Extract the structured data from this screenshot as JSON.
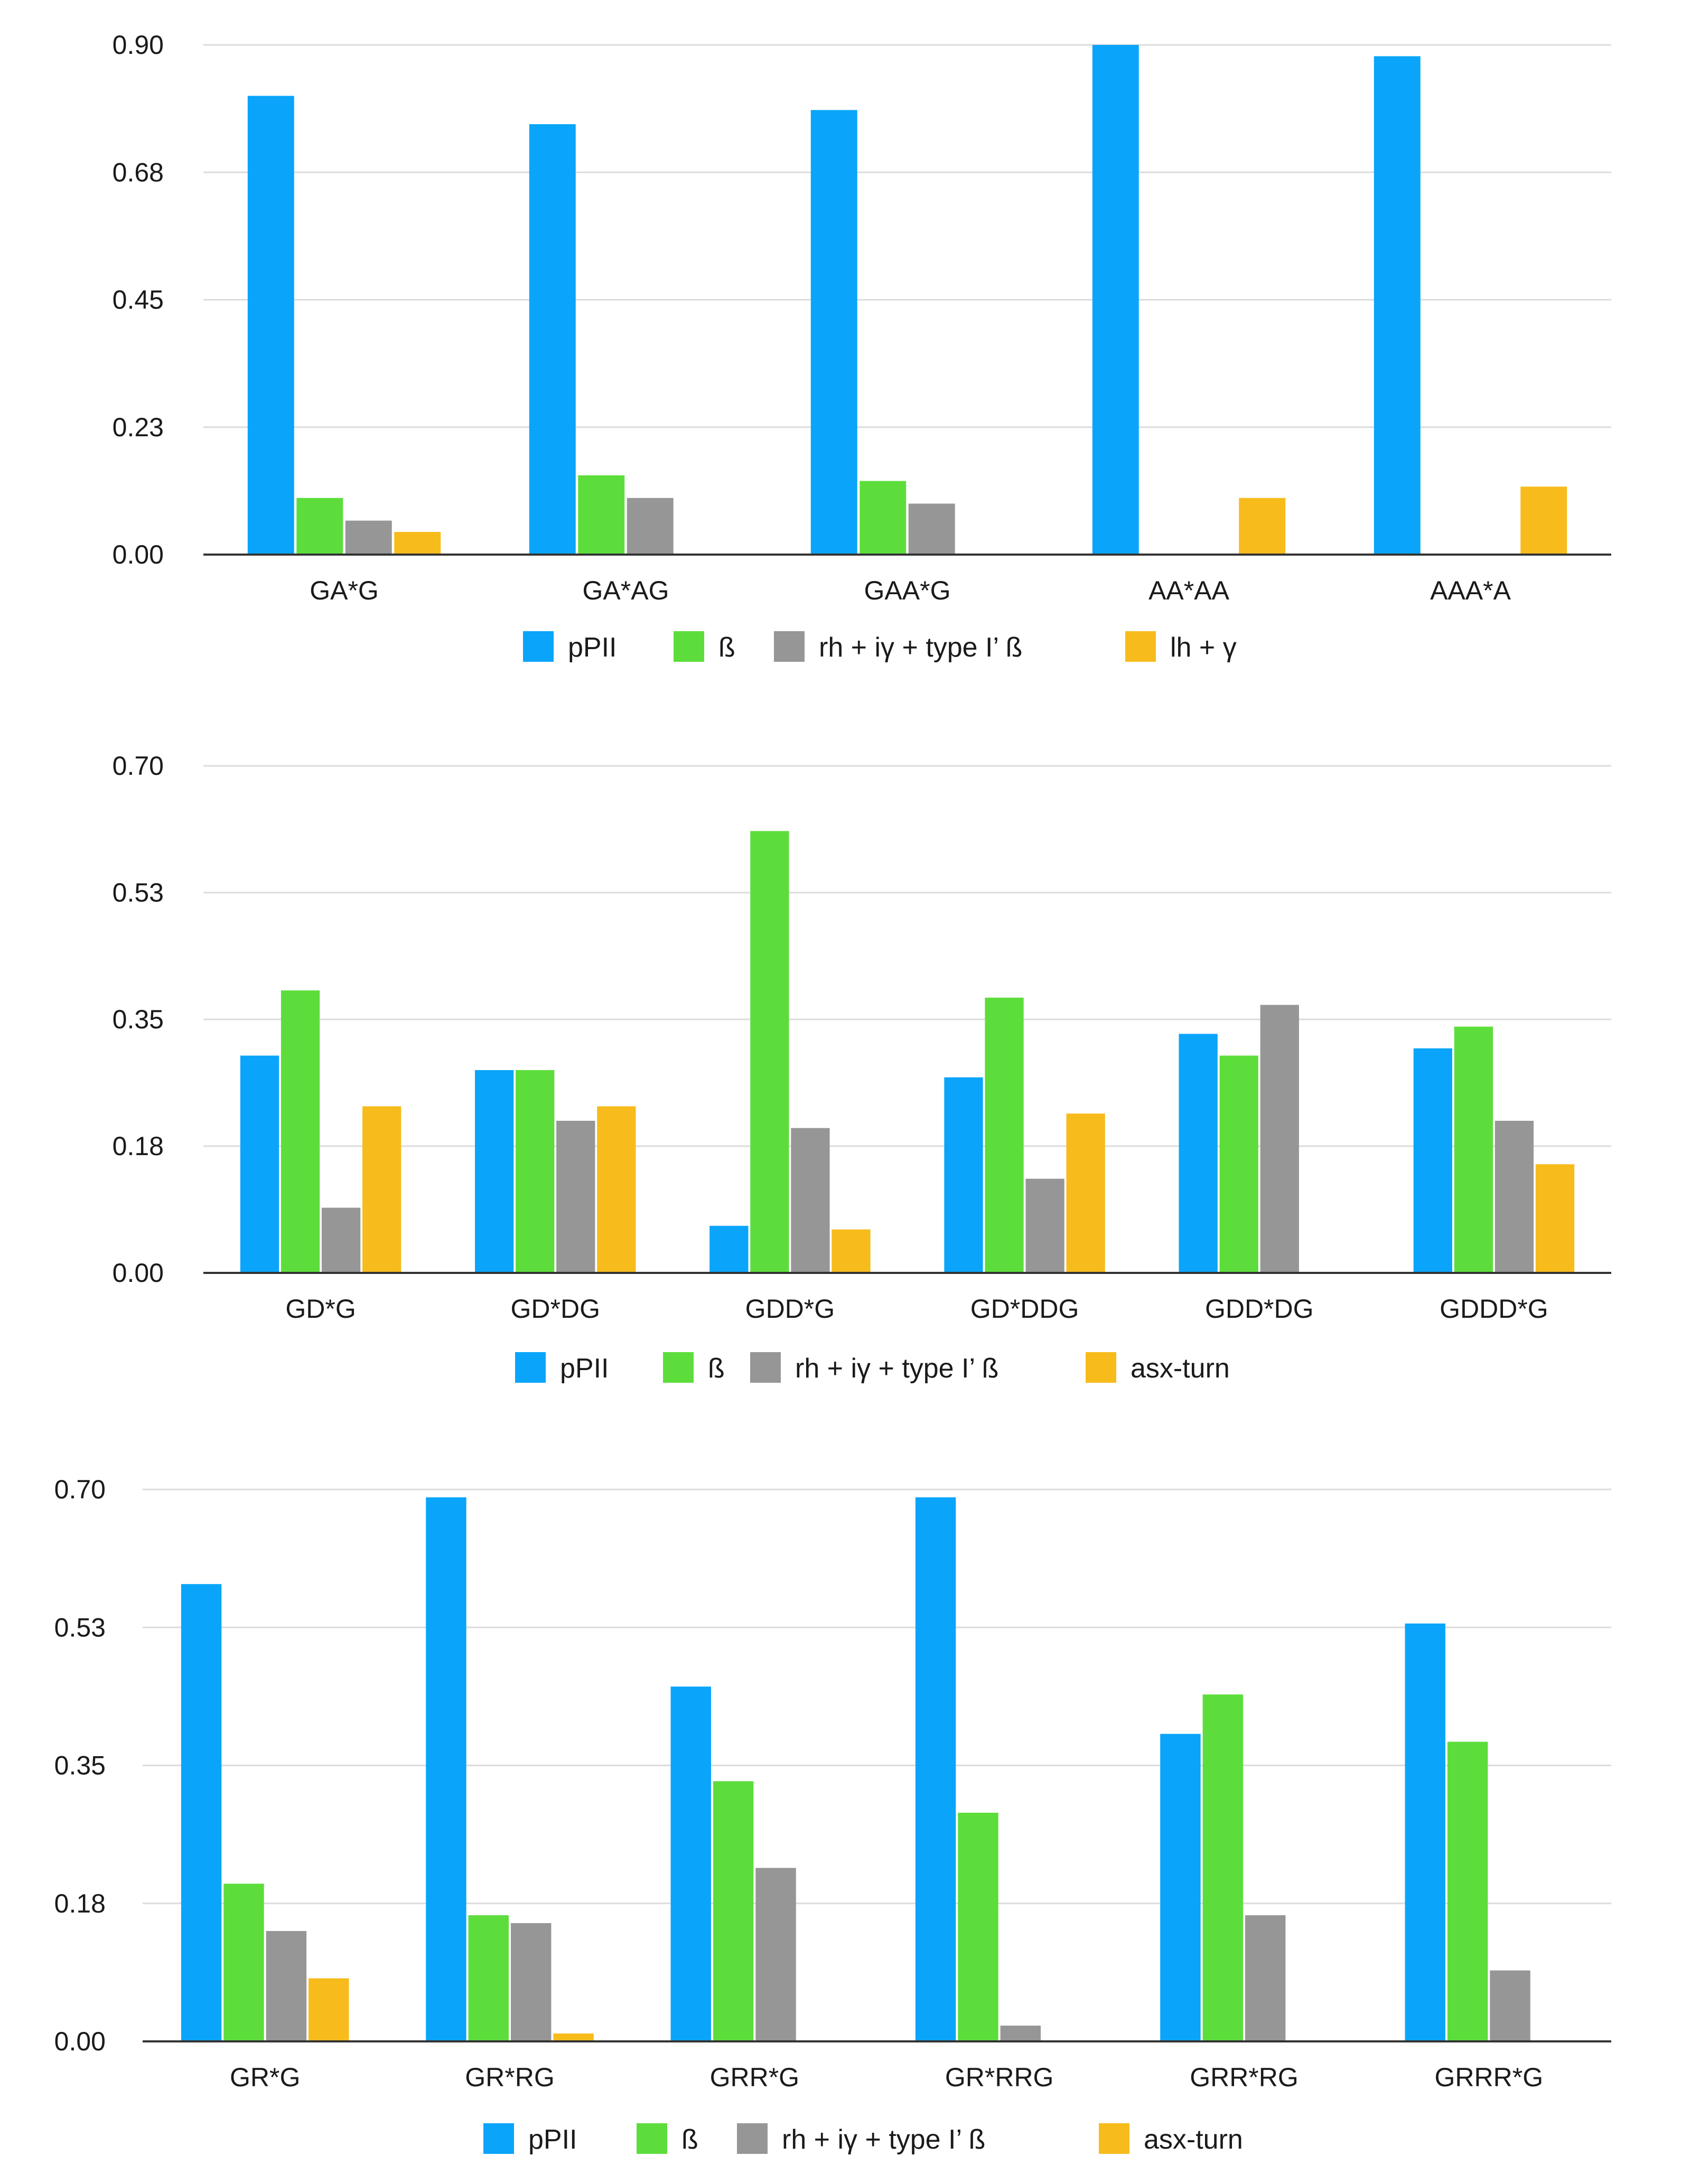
{
  "colors": {
    "pPII": "#0aa5fa",
    "beta": "#5ddd3c",
    "rh": "#969696",
    "turn": "#f7bb1c",
    "grid": "#dcdcdc",
    "axis": "#333333"
  },
  "chart_data": [
    {
      "type": "bar",
      "categories": [
        "GA*G",
        "GA*AG",
        "GAA*G",
        "AA*AA",
        "AAA*A"
      ],
      "yticks": [
        "0.00",
        "0.23",
        "0.45",
        "0.68",
        "0.90"
      ],
      "ylim": [
        0,
        0.9
      ],
      "legend_position": "bottom",
      "series": [
        {
          "name": "pPII",
          "color_key": "pPII",
          "values": [
            0.81,
            0.76,
            0.785,
            0.9,
            0.88
          ]
        },
        {
          "name": "ß",
          "color_key": "beta",
          "values": [
            0.1,
            0.14,
            0.13,
            null,
            null
          ]
        },
        {
          "name": "rh + iγ + type I’ ß",
          "color_key": "rh",
          "values": [
            0.06,
            0.1,
            0.09,
            null,
            null
          ]
        },
        {
          "name": "lh + γ",
          "color_key": "turn",
          "values": [
            0.04,
            null,
            null,
            0.1,
            0.12
          ]
        }
      ]
    },
    {
      "type": "bar",
      "categories": [
        "GD*G",
        "GD*DG",
        "GDD*G",
        "GD*DDG",
        "GDD*DG",
        "GDDD*G"
      ],
      "yticks": [
        "0.00",
        "0.18",
        "0.35",
        "0.53",
        "0.70"
      ],
      "ylim": [
        0,
        0.7
      ],
      "legend_position": "bottom",
      "series": [
        {
          "name": "pPII",
          "color_key": "pPII",
          "values": [
            0.3,
            0.28,
            0.065,
            0.27,
            0.33,
            0.31
          ]
        },
        {
          "name": "ß",
          "color_key": "beta",
          "values": [
            0.39,
            0.28,
            0.61,
            0.38,
            0.3,
            0.34
          ]
        },
        {
          "name": "rh + iγ + type I’ ß",
          "color_key": "rh",
          "values": [
            0.09,
            0.21,
            0.2,
            0.13,
            0.37,
            0.21
          ]
        },
        {
          "name": "asx-turn",
          "color_key": "turn",
          "values": [
            0.23,
            0.23,
            0.06,
            0.22,
            null,
            0.15
          ]
        }
      ]
    },
    {
      "type": "bar",
      "categories": [
        "GR*G",
        "GR*RG",
        "GRR*G",
        "GR*RRG",
        "GRR*RG",
        "GRRR*G"
      ],
      "yticks": [
        "0.00",
        "0.18",
        "0.35",
        "0.53",
        "0.70"
      ],
      "ylim": [
        0,
        0.7
      ],
      "legend_position": "bottom",
      "series": [
        {
          "name": "pPII",
          "color_key": "pPII",
          "values": [
            0.58,
            0.69,
            0.45,
            0.69,
            0.39,
            0.53
          ]
        },
        {
          "name": "ß",
          "color_key": "beta",
          "values": [
            0.2,
            0.16,
            0.33,
            0.29,
            0.44,
            0.38
          ]
        },
        {
          "name": "rh + iγ + type I’ ß",
          "color_key": "rh",
          "values": [
            0.14,
            0.15,
            0.22,
            0.02,
            0.16,
            0.09
          ]
        },
        {
          "name": "asx-turn",
          "color_key": "turn",
          "values": [
            0.08,
            0.01,
            null,
            null,
            null,
            null
          ]
        }
      ]
    }
  ]
}
